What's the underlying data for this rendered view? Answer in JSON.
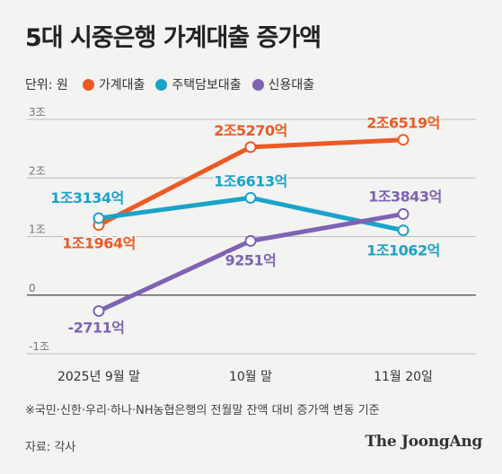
{
  "title": "5대 시중은행 가계대출 증가액",
  "unit_label": "단위: 원",
  "note": "※국민·신한·우리·하나·NH농협은행의 전월말 잔액 대비 증가액 변동 기준",
  "source": "자료: 각사",
  "brand": "The JoongAng",
  "chart_data": {
    "type": "line",
    "categories": [
      "2025년 9월 말",
      "10월 말",
      "11월 20일"
    ],
    "y_ticks": [
      "3조",
      "2조",
      "1조",
      "0",
      "-1조"
    ],
    "ylim": [
      -1,
      3
    ],
    "y_unit": "조원",
    "grid": true,
    "legend_position": "top-left",
    "series": [
      {
        "name": "가계대출",
        "color": "#ec5a24",
        "values": [
          1.1964,
          2.527,
          2.6519
        ],
        "labels": [
          "1조1964억",
          "2조5270억",
          "2조6519억"
        ]
      },
      {
        "name": "주택담보대출",
        "color": "#1aa3c8",
        "values": [
          1.3134,
          1.6613,
          1.1062
        ],
        "labels": [
          "1조3134억",
          "1조6613억",
          "1조1062억"
        ]
      },
      {
        "name": "신용대출",
        "color": "#7e63b2",
        "values": [
          -0.2711,
          0.9251,
          1.3843
        ],
        "labels": [
          "-2711억",
          "9251억",
          "1조3843억"
        ]
      }
    ]
  }
}
